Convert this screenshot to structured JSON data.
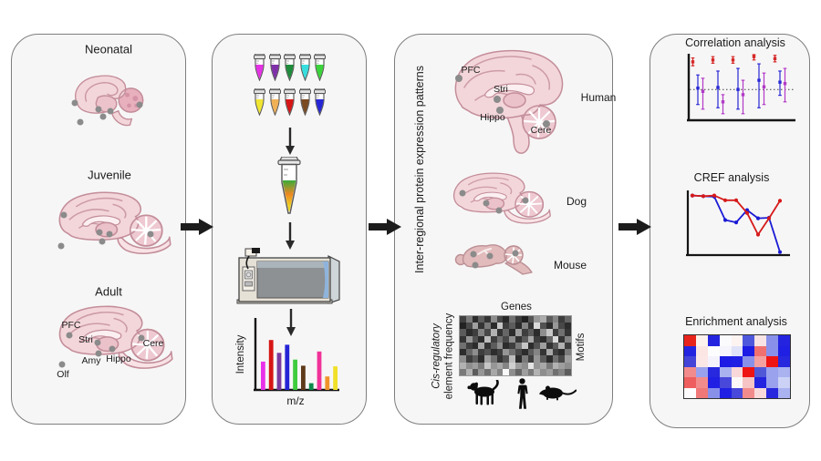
{
  "development_panel": {
    "stages": [
      "Neonatal",
      "Juvenile",
      "Adult"
    ],
    "adult_regions": [
      "PFC",
      "Stri",
      "Amy",
      "Hippo",
      "Olf",
      "Cere"
    ]
  },
  "proteomics_panel": {
    "tube_colors_row1": [
      "#e532e5",
      "#8030a8",
      "#1f8c3c",
      "#38dede",
      "#3bd43b"
    ],
    "tube_colors_row2": [
      "#f0e632",
      "#f0b055",
      "#d61616",
      "#7a4a20",
      "#2626d6"
    ]
  },
  "expression_panel": {
    "side_label": "Inter-regional protein expression patterns",
    "regions": [
      "PFC",
      "Stri",
      "Hippo",
      "Cere"
    ],
    "species": [
      "Human",
      "Dog",
      "Mouse"
    ]
  },
  "chart_data": [
    {
      "id": "mass_spectrum",
      "type": "bar",
      "xlabel": "m/z",
      "ylabel": "Intensity",
      "ylim": [
        0,
        1
      ],
      "values": [
        0.42,
        0.74,
        0.55,
        0.67,
        0.45,
        0.36,
        0.1,
        0.57,
        0.2,
        0.35
      ],
      "colors": [
        "#e832e8",
        "#d61616",
        "#7a3aa0",
        "#2424d6",
        "#3ecc3e",
        "#5e3a1a",
        "#0c8a4a",
        "#f03298",
        "#f09429",
        "#f0e029"
      ]
    },
    {
      "id": "correlation_analysis",
      "type": "scatter",
      "title": "Correlation analysis",
      "baseline": 0.47,
      "baseline_style": "dotted",
      "groups": 5,
      "series": [
        {
          "name": "red",
          "color": "#d62828",
          "values": [
            0.89,
            0.92,
            0.92,
            0.97,
            0.94
          ],
          "hi": [
            0.95,
            0.97,
            0.97,
            1.0,
            0.99
          ],
          "lo": [
            0.83,
            0.87,
            0.87,
            0.92,
            0.89
          ]
        },
        {
          "name": "blue",
          "color": "#2828d6",
          "values": [
            0.49,
            0.5,
            0.47,
            0.61,
            0.58
          ],
          "hi": [
            0.69,
            0.75,
            0.79,
            0.86,
            0.75
          ],
          "lo": [
            0.24,
            0.19,
            0.17,
            0.19,
            0.38
          ]
        },
        {
          "name": "purple",
          "color": "#b23ac8",
          "values": [
            0.44,
            0.28,
            0.39,
            0.51,
            0.56
          ],
          "hi": [
            0.64,
            0.39,
            0.61,
            0.72,
            0.79
          ],
          "lo": [
            0.17,
            0.1,
            0.1,
            0.24,
            0.28
          ]
        }
      ]
    },
    {
      "id": "cref_analysis",
      "type": "line",
      "title": "CREF analysis",
      "x": [
        1,
        2,
        3,
        4,
        5,
        6,
        7,
        8,
        9
      ],
      "series": [
        {
          "name": "red",
          "color": "#d61a1a",
          "values": [
            0.99,
            0.98,
            0.99,
            0.91,
            0.91,
            0.69,
            0.32,
            0.6,
            0.9
          ]
        },
        {
          "name": "blue",
          "color": "#1a1ad6",
          "values": [
            0.99,
            0.98,
            0.97,
            0.57,
            0.53,
            0.74,
            0.6,
            0.61,
            0.02
          ]
        }
      ]
    },
    {
      "id": "cis_regulatory_heatmap",
      "type": "heatmap",
      "top_label": "Genes",
      "right_label": "Motifs",
      "left_label": [
        "Cis-regulatory",
        "element frequency"
      ],
      "gray_values": [
        [
          64,
          122,
          44,
          92,
          52,
          140,
          72,
          40,
          112,
          60,
          34,
          84,
          152,
          172,
          92,
          132,
          60,
          100
        ],
        [
          34,
          72,
          160,
          52,
          122,
          42,
          198,
          62,
          92,
          44,
          132,
          52,
          218,
          82,
          44,
          152,
          72,
          44
        ],
        [
          92,
          44,
          62,
          132,
          72,
          178,
          52,
          102,
          44,
          158,
          62,
          92,
          44,
          142,
          198,
          62,
          112,
          52
        ],
        [
          52,
          150,
          82,
          44,
          188,
          62,
          112,
          72,
          142,
          52,
          92,
          168,
          62,
          44,
          102,
          218,
          52,
          132
        ],
        [
          112,
          62,
          44,
          168,
          52,
          92,
          142,
          44,
          62,
          122,
          198,
          44,
          82,
          158,
          52,
          92,
          178,
          62
        ],
        [
          44,
          102,
          142,
          62,
          82,
          44,
          62,
          150,
          112,
          72,
          44,
          92,
          132,
          52,
          168,
          62,
          44,
          122
        ],
        [
          142,
          62,
          92,
          44,
          158,
          112,
          52,
          82,
          188,
          44,
          122,
          62,
          150,
          92,
          44,
          112,
          72,
          158
        ],
        [
          178,
          142,
          158,
          122,
          198,
          150,
          168,
          132,
          208,
          158,
          142,
          228,
          150,
          168,
          122,
          178,
          158,
          142
        ],
        [
          122,
          178,
          92,
          150,
          112,
          168,
          132,
          248,
          142,
          102,
          158,
          122,
          178,
          142,
          158,
          112,
          132,
          92
        ]
      ]
    },
    {
      "id": "enrichment_heatmap",
      "type": "heatmap",
      "title": "Enrichment analysis",
      "cell_colors": [
        [
          "#e8231c",
          "#fdf1ed",
          "#2424e0",
          "#fbfbfe",
          "#fdf3f1",
          "#4e58dc",
          "#f8e4e4",
          "#8890ea",
          "#2424e0"
        ],
        [
          "#2424e0",
          "#fbe6e4",
          "#fdfdff",
          "#f6f4fc",
          "#dfe2f8",
          "#1c1ce4",
          "#f07070",
          "#8890ea",
          "#2020e4"
        ],
        [
          "#4444d8",
          "#fbe8e6",
          "#f4f2fc",
          "#1c1ce4",
          "#2020e4",
          "#8890ea",
          "#f4a0a0",
          "#ee1414",
          "#2828de"
        ],
        [
          "#f28c8c",
          "#9aa2ee",
          "#2828de",
          "#aab2f0",
          "#f8d8d8",
          "#ee1414",
          "#5058d8",
          "#9aa2ee",
          "#aab2f0"
        ],
        [
          "#ee5e5e",
          "#f28c8c",
          "#2020e4",
          "#4848da",
          "#fcf8f8",
          "#f6c4c4",
          "#2424e0",
          "#9aa2ee",
          "#ccd2f6"
        ],
        [
          "#fdfbfb",
          "#f07878",
          "#8890ea",
          "#2020e4",
          "#4848da",
          "#f28c8c",
          "#f8dada",
          "#2828de",
          "#aab2f0"
        ]
      ]
    }
  ]
}
